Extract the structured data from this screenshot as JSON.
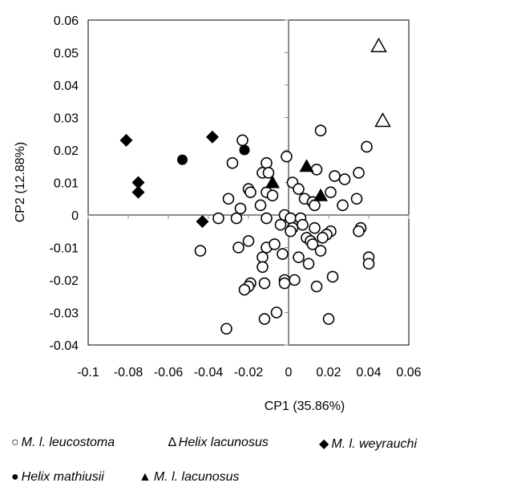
{
  "chart_data": {
    "type": "scatter",
    "xlabel": "CP1 (35.86%)",
    "ylabel": "CP2 (12.88%)",
    "xlim": [
      -0.1,
      0.06
    ],
    "ylim": [
      -0.04,
      0.06
    ],
    "xticks": [
      "-0.1",
      "-0.08",
      "-0.06",
      "-0.04",
      "-0.02",
      "0",
      "0.02",
      "0.04",
      "0.06"
    ],
    "yticks": [
      "0.06",
      "0.05",
      "0.04",
      "0.03",
      "0.02",
      "0.01",
      "0",
      "-0.01",
      "-0.02",
      "-0.03",
      "-0.04"
    ],
    "grid": false,
    "legend_position": "bottom",
    "series": [
      {
        "name": "M. l. leucostoma",
        "marker": "open-circle",
        "color": "#000000",
        "points": [
          [
            -0.023,
            0.023
          ],
          [
            -0.028,
            0.016
          ],
          [
            -0.011,
            0.016
          ],
          [
            -0.013,
            0.013
          ],
          [
            -0.01,
            0.013
          ],
          [
            -0.001,
            0.018
          ],
          [
            0.016,
            0.026
          ],
          [
            0.014,
            0.014
          ],
          [
            0.023,
            0.012
          ],
          [
            0.028,
            0.011
          ],
          [
            0.039,
            0.021
          ],
          [
            0.035,
            0.013
          ],
          [
            0.002,
            0.01
          ],
          [
            0.005,
            0.008
          ],
          [
            0.021,
            0.007
          ],
          [
            -0.02,
            0.008
          ],
          [
            -0.019,
            0.007
          ],
          [
            -0.03,
            0.005
          ],
          [
            -0.024,
            0.002
          ],
          [
            -0.011,
            0.007
          ],
          [
            -0.014,
            0.003
          ],
          [
            -0.008,
            0.006
          ],
          [
            0.008,
            0.005
          ],
          [
            0.012,
            0.004
          ],
          [
            0.013,
            0.003
          ],
          [
            0.027,
            0.003
          ],
          [
            0.034,
            0.005
          ],
          [
            -0.002,
            0.0
          ],
          [
            0.001,
            -0.001
          ],
          [
            0.006,
            -0.001
          ],
          [
            -0.026,
            -0.001
          ],
          [
            -0.035,
            -0.001
          ],
          [
            -0.011,
            -0.001
          ],
          [
            -0.004,
            -0.003
          ],
          [
            0.002,
            -0.004
          ],
          [
            0.001,
            -0.005
          ],
          [
            0.007,
            -0.003
          ],
          [
            0.013,
            -0.004
          ],
          [
            0.021,
            -0.005
          ],
          [
            0.019,
            -0.006
          ],
          [
            0.017,
            -0.007
          ],
          [
            0.009,
            -0.007
          ],
          [
            0.011,
            -0.008
          ],
          [
            0.012,
            -0.009
          ],
          [
            0.036,
            -0.004
          ],
          [
            0.035,
            -0.005
          ],
          [
            -0.044,
            -0.011
          ],
          [
            -0.025,
            -0.01
          ],
          [
            -0.02,
            -0.008
          ],
          [
            -0.011,
            -0.01
          ],
          [
            -0.007,
            -0.009
          ],
          [
            -0.003,
            -0.012
          ],
          [
            0.016,
            -0.011
          ],
          [
            0.04,
            -0.013
          ],
          [
            0.04,
            -0.015
          ],
          [
            -0.013,
            -0.013
          ],
          [
            -0.013,
            -0.016
          ],
          [
            0.005,
            -0.013
          ],
          [
            0.01,
            -0.015
          ],
          [
            0.014,
            -0.022
          ],
          [
            0.022,
            -0.019
          ],
          [
            -0.019,
            -0.021
          ],
          [
            -0.02,
            -0.022
          ],
          [
            -0.022,
            -0.023
          ],
          [
            -0.012,
            -0.021
          ],
          [
            -0.002,
            -0.02
          ],
          [
            -0.002,
            -0.021
          ],
          [
            0.003,
            -0.02
          ],
          [
            -0.006,
            -0.03
          ],
          [
            -0.012,
            -0.032
          ],
          [
            -0.031,
            -0.035
          ],
          [
            0.02,
            -0.032
          ]
        ]
      },
      {
        "name": "Helix lacunosus",
        "marker": "open-triangle",
        "color": "#000000",
        "points": [
          [
            0.045,
            0.052
          ],
          [
            0.047,
            0.029
          ]
        ]
      },
      {
        "name": "M. l. weyrauchi",
        "marker": "filled-diamond",
        "color": "#000000",
        "points": [
          [
            -0.081,
            0.023
          ],
          [
            -0.075,
            0.01
          ],
          [
            -0.075,
            0.007
          ],
          [
            -0.038,
            0.024
          ],
          [
            -0.043,
            -0.002
          ]
        ]
      },
      {
        "name": "Helix mathiusii",
        "marker": "filled-circle",
        "color": "#000000",
        "points": [
          [
            -0.053,
            0.017
          ],
          [
            -0.022,
            0.02
          ]
        ]
      },
      {
        "name": "M. l. lacunosus",
        "marker": "filled-triangle",
        "color": "#000000",
        "points": [
          [
            -0.008,
            0.01
          ],
          [
            0.009,
            0.015
          ],
          [
            0.016,
            0.006
          ]
        ]
      }
    ]
  },
  "legend": {
    "items": [
      {
        "symbol": "○",
        "label": "M. l. leucostoma"
      },
      {
        "symbol": "∆",
        "label": "Helix lacunosus"
      },
      {
        "symbol": "◆",
        "label": "M. l. weyrauchi"
      },
      {
        "symbol": "●",
        "label": "Helix mathiusii"
      },
      {
        "symbol": "▲",
        "label": "M. l. lacunosus"
      }
    ]
  }
}
